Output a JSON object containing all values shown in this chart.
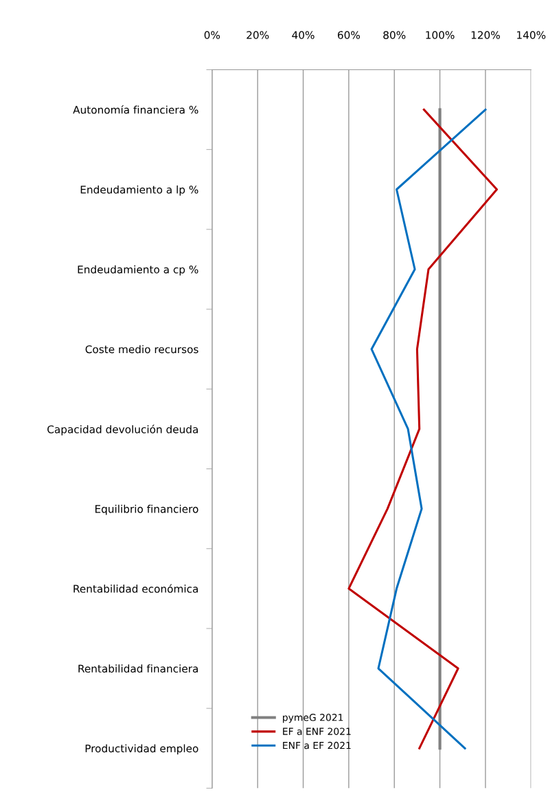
{
  "chart_data": {
    "type": "line",
    "orientation": "horizontal",
    "categories": [
      "Autonomía financiera %",
      "Endeudamiento a lp %",
      "Endeudamiento a cp %",
      "Coste medio recursos",
      "Capacidad devolución deuda",
      "Equilibrio financiero",
      "Rentabilidad económica",
      "Rentabilidad financiera",
      "Productividad empleo"
    ],
    "series": [
      {
        "name": "pymeG 2021",
        "color": "#808080",
        "values": [
          100,
          100,
          100,
          100,
          100,
          100,
          100,
          100,
          100
        ]
      },
      {
        "name": "EF a ENF 2021",
        "color": "#c00000",
        "values": [
          93,
          125,
          95,
          90,
          91,
          77,
          60,
          108,
          91
        ]
      },
      {
        "name": "ENF a EF 2021",
        "color": "#0070c0",
        "values": [
          120,
          81,
          89,
          70,
          86,
          92,
          81,
          73,
          111
        ]
      }
    ],
    "xlim": [
      0,
      140
    ],
    "xticks": [
      {
        "value": 0,
        "label": "0%"
      },
      {
        "value": 20,
        "label": "20%"
      },
      {
        "value": 40,
        "label": "40%"
      },
      {
        "value": 60,
        "label": "60%"
      },
      {
        "value": 80,
        "label": "80%"
      },
      {
        "value": 100,
        "label": "100%"
      },
      {
        "value": 120,
        "label": "120%"
      },
      {
        "value": 140,
        "label": "140%"
      }
    ],
    "grid": "x",
    "legend": "bottom left",
    "marker": "none",
    "line_style": "solid"
  }
}
